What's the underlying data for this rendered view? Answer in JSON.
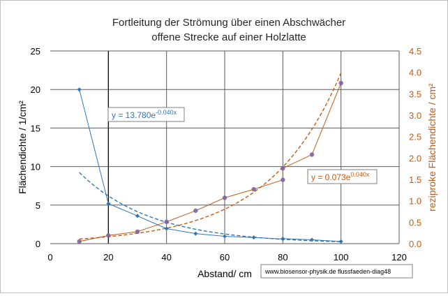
{
  "chart_data": {
    "type": "scatter",
    "title": [
      "Fortleitung der Strömung über einen Abschwächer",
      "offene Strecke auf einer Holzlatte"
    ],
    "xlabel": "Abstand/ cm",
    "ylabel_left": "Flächendichte  / 1/cm²",
    "ylabel_right": "reziproke Flächendichte / cm²",
    "xlim": [
      0,
      120
    ],
    "ylim_left": [
      0,
      25
    ],
    "ylim_right": [
      0,
      4.5
    ],
    "x_ticks": [
      "0",
      "20",
      "40",
      "60",
      "80",
      "100",
      "120"
    ],
    "y_ticks_left": [
      "0",
      "5",
      "10",
      "15",
      "20",
      "25"
    ],
    "y_ticks_right": [
      "0.0",
      "0.5",
      "1.0",
      "1.5",
      "2.0",
      "2.5",
      "3.0",
      "3.5",
      "4.0",
      "4.5"
    ],
    "grid": true,
    "series": [
      {
        "axis": "left",
        "color": "#2e75b6",
        "x": [
          10,
          20,
          30,
          40,
          50,
          60,
          70,
          80,
          80,
          90,
          100
        ],
        "y": [
          20.0,
          5.2,
          3.6,
          1.95,
          1.3,
          0.95,
          0.8,
          0.6,
          0.65,
          0.5,
          0.28
        ],
        "trendline": {
          "type": "exponential",
          "a": 13.78,
          "b": -0.04,
          "label_base": "y = 13.780e",
          "label_exp": "-0.040x"
        }
      },
      {
        "axis": "right",
        "color": "#c55a11",
        "x": [
          10,
          20,
          30,
          40,
          50,
          60,
          70,
          80,
          80,
          90,
          100
        ],
        "y": [
          0.05,
          0.19,
          0.28,
          0.51,
          0.77,
          1.07,
          1.27,
          1.49,
          1.76,
          2.08,
          3.75
        ],
        "trendline": {
          "type": "exponential",
          "a": 0.073,
          "b": 0.04,
          "label_base": "y = 0.073e",
          "label_exp": "0.040x"
        }
      }
    ]
  },
  "credit": "www.biosensor-physik.de  flussfaeden-diag48"
}
